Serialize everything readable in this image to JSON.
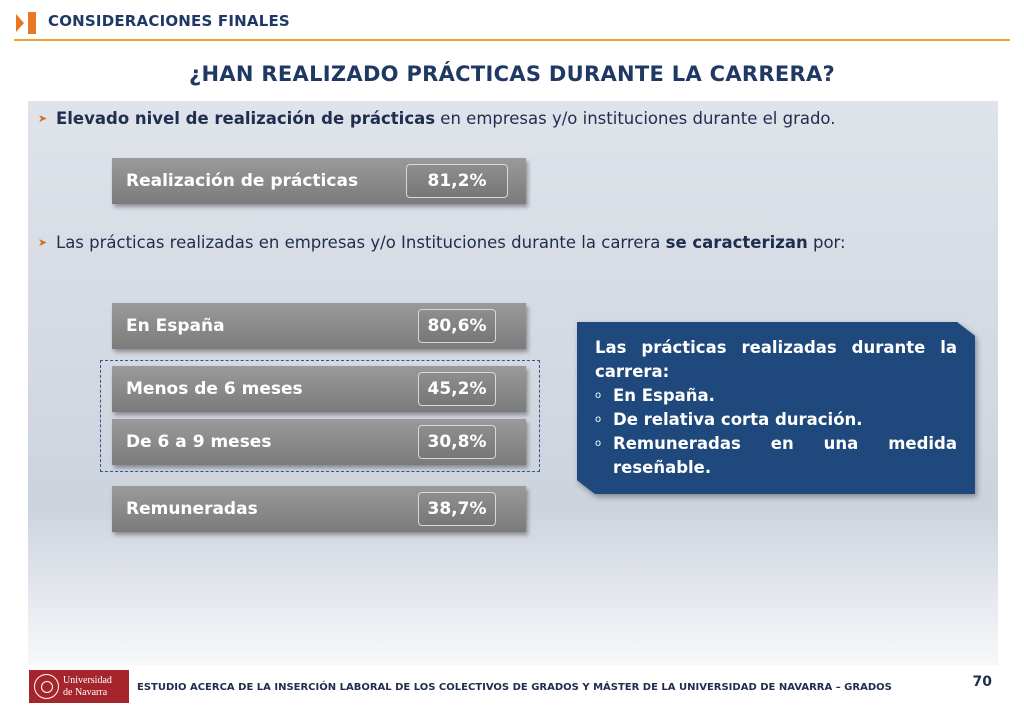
{
  "header": {
    "section_label": "CONSIDERACIONES FINALES"
  },
  "slide": {
    "title": "¿HAN REALIZADO PRÁCTICAS DURANTE LA CARRERA?"
  },
  "bullets": [
    {
      "bold": "Elevado nivel de realización de prácticas",
      "text": " en empresas y/o instituciones durante el grado."
    },
    {
      "text": "Las prácticas realizadas en empresas y/o Instituciones  durante la carrera ",
      "bold": "se caracterizan",
      "after": " por:"
    }
  ],
  "stats": [
    {
      "label": "Realización de prácticas",
      "value": "81,2%"
    },
    {
      "label": "En España",
      "value": "80,6%"
    },
    {
      "label": "Menos de 6 meses",
      "value": "45,2%"
    },
    {
      "label": "De 6 a 9 meses",
      "value": "30,8%"
    },
    {
      "label": "Remuneradas",
      "value": "38,7%"
    }
  ],
  "callout": {
    "intro": "Las prácticas realizadas durante la carrera:",
    "marker": "o",
    "items": [
      "En España.",
      "De relativa corta duración.",
      "Remuneradas en una medida reseñable."
    ]
  },
  "logo": {
    "line1": "Universidad",
    "line2": "de Navarra"
  },
  "footer": {
    "text": "ESTUDIO ACERCA DE LA INSERCIÓN LABORAL DE LOS COLECTIVOS DE GRADOS Y MÁSTER DE LA UNIVERSIDAD DE NAVARRA – GRADOS",
    "page_number": "70"
  },
  "colors": {
    "title": "#1f3864",
    "accent_rule": "#f0a030",
    "header_icon": "#e87722",
    "stat_bar": "#8a8a8a",
    "callout_bg": "#1f497d",
    "logo_bg": "#a4262c"
  },
  "icons": {
    "header": "orange-forward-arrow-bar-icon",
    "bullet": "arrowhead-bullet-icon",
    "logo_seal": "university-seal-icon"
  }
}
